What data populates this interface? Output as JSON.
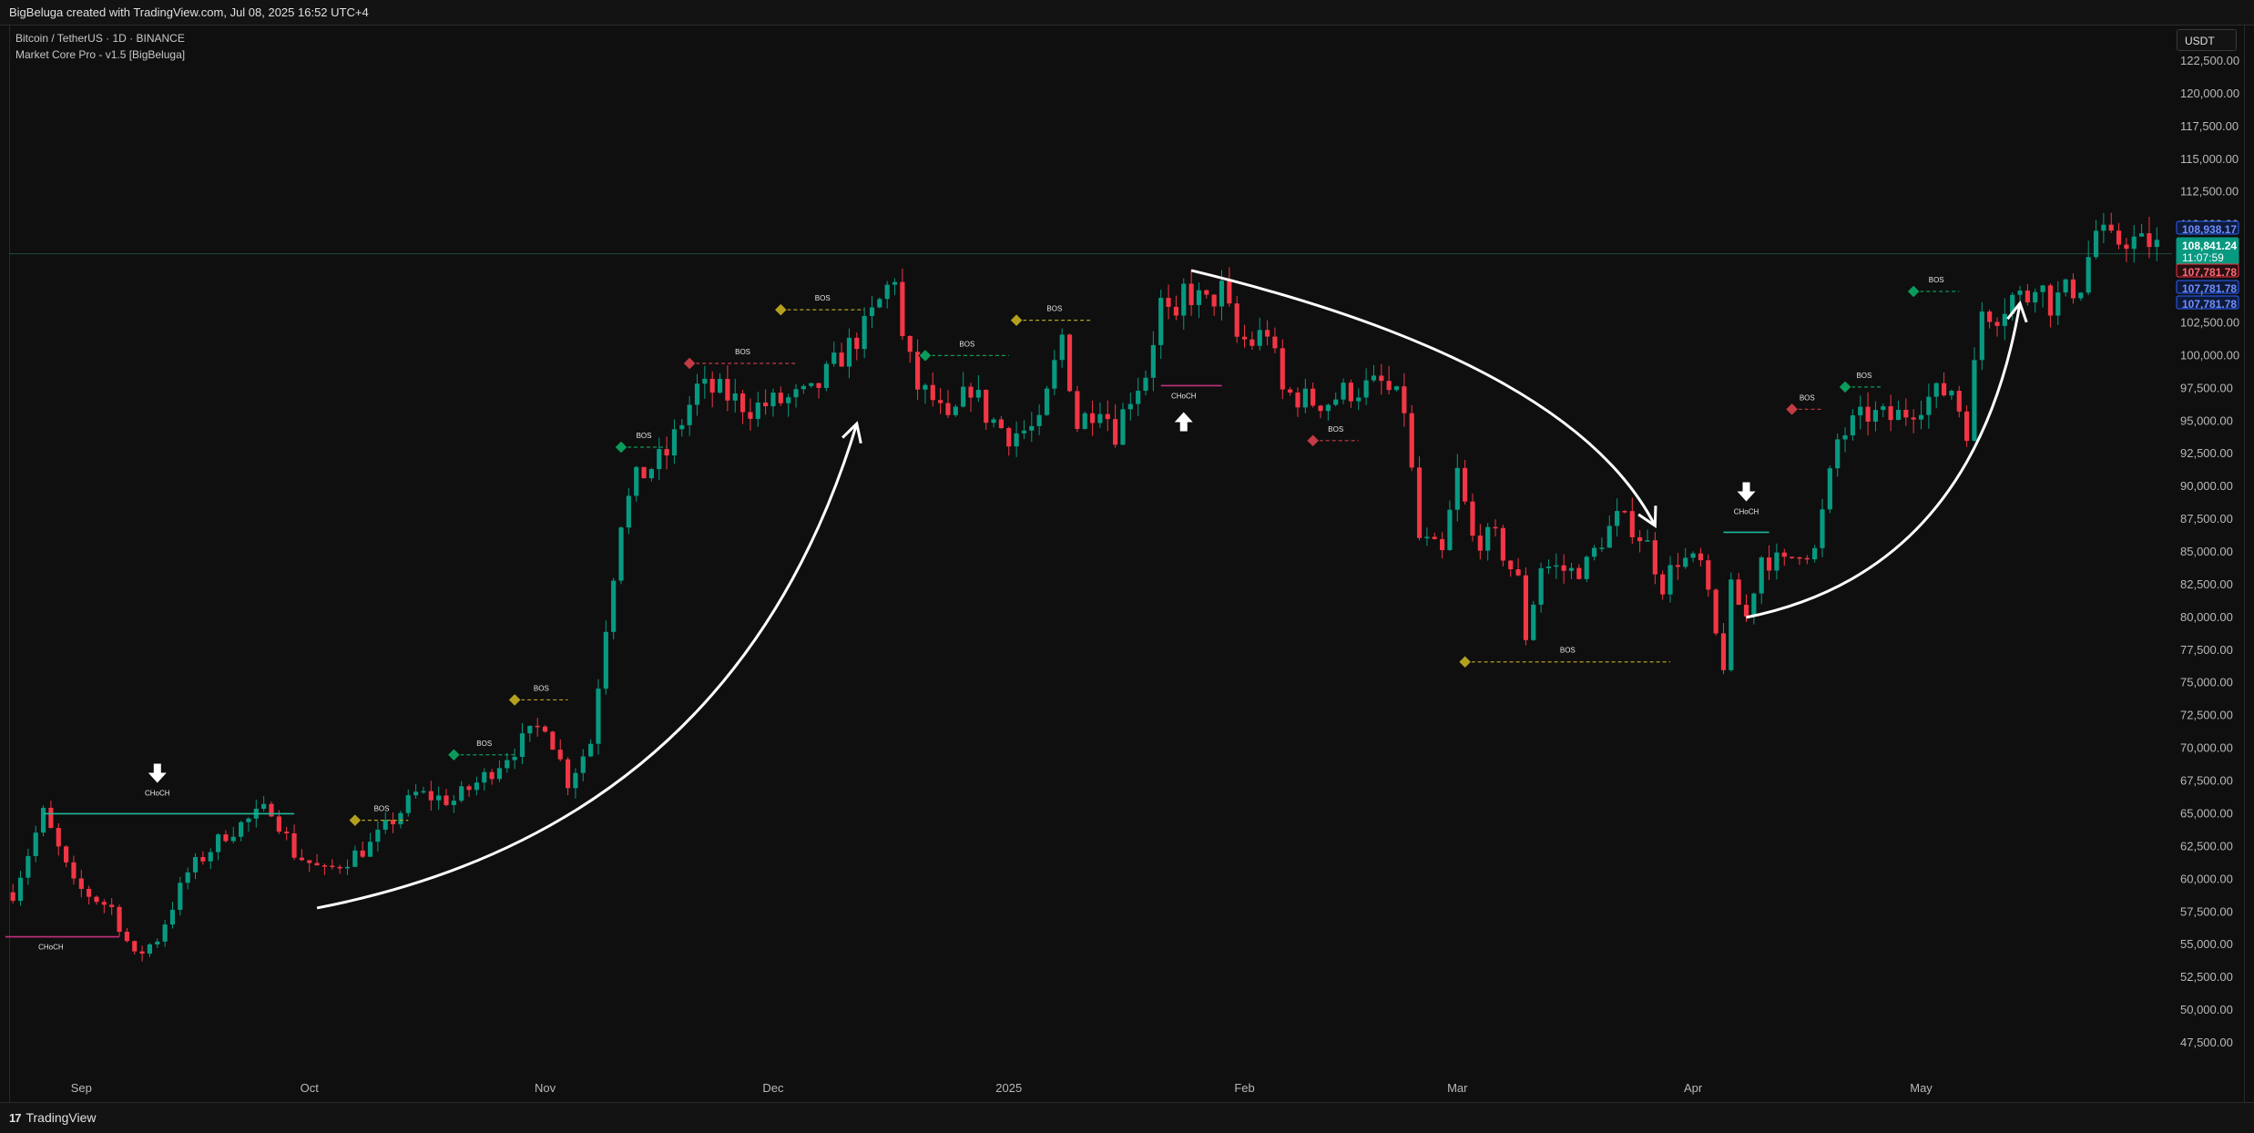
{
  "header": {
    "title": "BigBeluga created with TradingView.com, Jul 08, 2025 16:52 UTC+4"
  },
  "legend": {
    "symbol": "Bitcoin / TetherUS · 1D · BINANCE",
    "indicator": "Market Core Pro - v1.5  [BigBeluga]"
  },
  "footer": {
    "brand": "TradingView",
    "brand_logo": "17"
  },
  "currency": "USDT",
  "colors": {
    "up": "#089981",
    "down": "#f23645",
    "bg": "#0f0f0f",
    "bos_green": "#0b9b5a",
    "bos_red": "#c23b45",
    "bos_yellow": "#b3a11e"
  },
  "chart_data": {
    "type": "candlestick",
    "symbol": "BTCUSDT",
    "timeframe": "1D",
    "ylim": [
      46000,
      124000
    ],
    "y_ticks": [
      122500,
      120000,
      117500,
      115000,
      112500,
      110000,
      107500,
      105000,
      102500,
      100000,
      97500,
      95000,
      92500,
      90000,
      87500,
      85000,
      82500,
      80000,
      77500,
      75000,
      72500,
      70000,
      67500,
      65000,
      62500,
      60000,
      57500,
      55000,
      52500,
      50000,
      47500
    ],
    "y_tick_labels": [
      "122,500.00",
      "120,000.00",
      "117,500.00",
      "115,000.00",
      "112,500.00",
      "110,000.00",
      "107,500.00",
      "105,000.00",
      "102,500.00",
      "100,000.00",
      "97,500.00",
      "95,000.00",
      "92,500.00",
      "90,000.00",
      "87,500.00",
      "85,000.00",
      "82,500.00",
      "80,000.00",
      "77,500.00",
      "75,000.00",
      "72,500.00",
      "70,000.00",
      "67,500.00",
      "65,000.00",
      "62,500.00",
      "60,000.00",
      "57,500.00",
      "55,000.00",
      "52,500.00",
      "50,000.00",
      "47,500.00"
    ],
    "x_months": [
      {
        "label": "Sep",
        "day": 9
      },
      {
        "label": "Oct",
        "day": 39
      },
      {
        "label": "Nov",
        "day": 70
      },
      {
        "label": "Dec",
        "day": 100
      },
      {
        "label": "2025",
        "day": 131
      },
      {
        "label": "Feb",
        "day": 162
      },
      {
        "label": "Mar",
        "day": 190
      },
      {
        "label": "Apr",
        "day": 221
      },
      {
        "label": "May",
        "day": 251
      }
    ],
    "x_range_days": [
      -0.5,
      284
    ],
    "waypoints": [
      [
        0,
        59000
      ],
      [
        4,
        65000
      ],
      [
        8,
        59500
      ],
      [
        13,
        57800
      ],
      [
        16,
        54000
      ],
      [
        19,
        55500
      ],
      [
        23,
        60500
      ],
      [
        28,
        63500
      ],
      [
        34,
        65500
      ],
      [
        37,
        62000
      ],
      [
        41,
        60500
      ],
      [
        47,
        62600
      ],
      [
        53,
        66500
      ],
      [
        58,
        66000
      ],
      [
        62,
        67800
      ],
      [
        65,
        69500
      ],
      [
        70,
        72000
      ],
      [
        73,
        67500
      ],
      [
        76,
        70500
      ],
      [
        78,
        79500
      ],
      [
        80,
        87500
      ],
      [
        82,
        90500
      ],
      [
        86,
        92500
      ],
      [
        90,
        97500
      ],
      [
        93,
        97200
      ],
      [
        97,
        96000
      ],
      [
        101,
        96500
      ],
      [
        105,
        97000
      ],
      [
        109,
        100000
      ],
      [
        112,
        102000
      ],
      [
        116,
        106200
      ],
      [
        117,
        101200
      ],
      [
        119,
        97600
      ],
      [
        121,
        96600
      ],
      [
        123,
        94600
      ],
      [
        126,
        97700
      ],
      [
        128,
        95500
      ],
      [
        131,
        94000
      ],
      [
        135,
        94500
      ],
      [
        138,
        101500
      ],
      [
        140,
        94700
      ],
      [
        143,
        96500
      ],
      [
        145,
        94200
      ],
      [
        147,
        97000
      ],
      [
        149,
        98700
      ],
      [
        151,
        104000
      ],
      [
        153,
        102000
      ],
      [
        154,
        105000
      ],
      [
        157,
        103900
      ],
      [
        159,
        105000
      ],
      [
        161,
        101300
      ],
      [
        163,
        101000
      ],
      [
        165,
        102000
      ],
      [
        167,
        97200
      ],
      [
        171,
        96500
      ],
      [
        173,
        96500
      ],
      [
        175,
        97200
      ],
      [
        180,
        97800
      ],
      [
        183,
        96000
      ],
      [
        185,
        86000
      ],
      [
        188,
        84700
      ],
      [
        190,
        91000
      ],
      [
        192,
        86000
      ],
      [
        195,
        86000
      ],
      [
        198,
        82700
      ],
      [
        199,
        78600
      ],
      [
        201,
        84000
      ],
      [
        205,
        83500
      ],
      [
        207,
        84000
      ],
      [
        209,
        86000
      ],
      [
        211,
        87500
      ],
      [
        213,
        87000
      ],
      [
        215,
        85500
      ],
      [
        217,
        82500
      ],
      [
        219,
        84500
      ],
      [
        222,
        84000
      ],
      [
        224,
        78500
      ],
      [
        225,
        76500
      ],
      [
        226,
        82000
      ],
      [
        228,
        80000
      ],
      [
        230,
        84700
      ],
      [
        233,
        84000
      ],
      [
        235,
        85300
      ],
      [
        237,
        85000
      ],
      [
        240,
        93500
      ],
      [
        242,
        94700
      ],
      [
        244,
        95500
      ],
      [
        247,
        95200
      ],
      [
        249,
        95700
      ],
      [
        251,
        96500
      ],
      [
        253,
        97000
      ],
      [
        255,
        97500
      ],
      [
        257,
        94500
      ],
      [
        259,
        103500
      ],
      [
        261,
        103300
      ],
      [
        263,
        104500
      ],
      [
        265,
        104500
      ],
      [
        266,
        106000
      ],
      [
        268,
        104000
      ],
      [
        270,
        104800
      ],
      [
        272,
        105500
      ],
      [
        274,
        109500
      ],
      [
        276,
        108500
      ],
      [
        278,
        109000
      ],
      [
        280,
        108500
      ],
      [
        282,
        108841
      ]
    ],
    "last_price": "108,841.24",
    "countdown": "11:07:59",
    "price_badges": [
      {
        "label": "108,938.17",
        "value": 108938,
        "style": "blue"
      },
      {
        "label": "107,781.78",
        "value": 106600,
        "style": "red"
      },
      {
        "label": "107,781.78",
        "value": 105400,
        "style": "blue"
      },
      {
        "label": "107,781.78",
        "value": 104200,
        "style": "blue"
      }
    ],
    "horizontal_level": 107780,
    "structure": [
      {
        "type": "BOS",
        "label": "BOS",
        "color": "yellow",
        "day": 45,
        "level": 64500,
        "end": 52
      },
      {
        "type": "BOS",
        "label": "BOS",
        "color": "green",
        "day": 58,
        "level": 69500,
        "end": 66
      },
      {
        "type": "BOS",
        "label": "BOS",
        "color": "yellow",
        "day": 66,
        "level": 73700,
        "end": 73
      },
      {
        "type": "BOS",
        "label": "BOS",
        "color": "green",
        "day": 80,
        "level": 93000,
        "end": 86
      },
      {
        "type": "BOS",
        "label": "BOS",
        "color": "red",
        "day": 89,
        "level": 99400,
        "end": 103
      },
      {
        "type": "BOS",
        "label": "BOS",
        "color": "yellow",
        "day": 101,
        "level": 103500,
        "end": 112
      },
      {
        "type": "BOS",
        "label": "BOS",
        "color": "green",
        "day": 120,
        "level": 100000,
        "end": 131
      },
      {
        "type": "BOS",
        "label": "BOS",
        "color": "yellow",
        "day": 132,
        "level": 102700,
        "end": 142
      },
      {
        "type": "BOS",
        "label": "BOS",
        "color": "red",
        "day": 171,
        "level": 93500,
        "end": 177
      },
      {
        "type": "BOS",
        "label": "BOS",
        "color": "yellow",
        "day": 191,
        "level": 76600,
        "end": 218
      },
      {
        "type": "BOS",
        "label": "BOS",
        "color": "red",
        "day": 234,
        "level": 95900,
        "end": 238
      },
      {
        "type": "BOS",
        "label": "BOS",
        "color": "green",
        "day": 241,
        "level": 97600,
        "end": 246
      },
      {
        "type": "BOS",
        "label": "BOS",
        "color": "green",
        "day": 250,
        "level": 104900,
        "end": 256
      }
    ],
    "choch": [
      {
        "label": "CHoCH",
        "color": "teal",
        "from": 4,
        "to": 37,
        "level": 65000,
        "arrow": "down",
        "label_day": 19
      },
      {
        "label": "CHoCH",
        "color": "magenta",
        "from": -1,
        "to": 14,
        "level": 55600,
        "arrow": "none",
        "label_day": 5
      },
      {
        "label": "CHoCH",
        "color": "magenta",
        "from": 151,
        "to": 159,
        "level": 97700,
        "arrow": "up",
        "label_day": 154
      },
      {
        "label": "CHoCH",
        "color": "teal",
        "from": 225,
        "to": 231,
        "level": 86500,
        "arrow": "down",
        "label_day": 228
      }
    ],
    "curves": [
      {
        "from": [
          40,
          57800
        ],
        "ctrl": [
          95,
          64000
        ],
        "to": [
          111,
          94800
        ]
      },
      {
        "from": [
          155,
          106500
        ],
        "ctrl": [
          205,
          99500
        ],
        "to": [
          216,
          87000
        ]
      },
      {
        "from": [
          228,
          80000
        ],
        "ctrl": [
          258,
          83500
        ],
        "to": [
          264,
          104000
        ]
      }
    ]
  }
}
